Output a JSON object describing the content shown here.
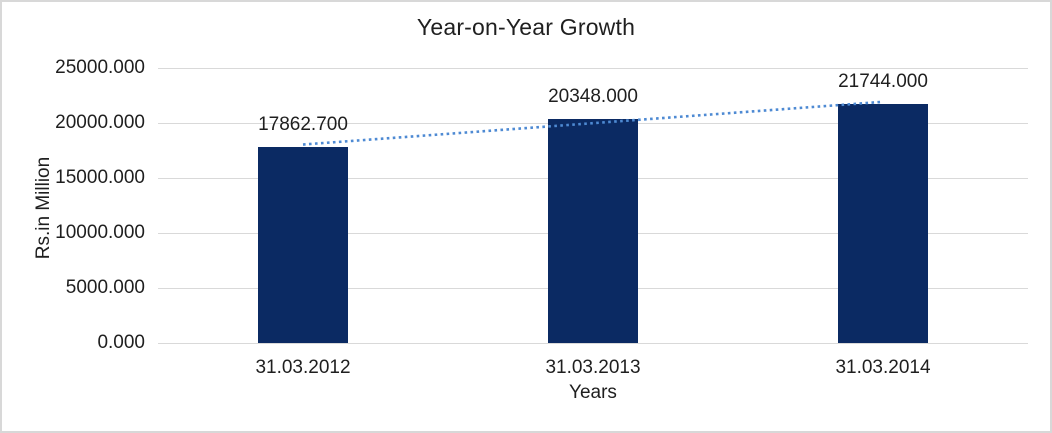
{
  "chart_data": {
    "type": "bar",
    "title": "Year-on-Year Growth",
    "xlabel": "Years",
    "ylabel": "Rs.in Million",
    "categories": [
      "31.03.2012",
      "31.03.2013",
      "31.03.2014"
    ],
    "values": [
      17862.7,
      20348.0,
      21744.0
    ],
    "data_labels": [
      "17862.700",
      "20348.000",
      "21744.000"
    ],
    "ylim": [
      0,
      25000
    ],
    "y_ticks": [
      0,
      5000,
      10000,
      15000,
      20000,
      25000
    ],
    "y_tick_labels": [
      "0.000",
      "5000.000",
      "10000.000",
      "15000.000",
      "20000.000",
      "25000.000"
    ],
    "grid": true,
    "legend": false,
    "trendline": {
      "style": "dotted",
      "color": "#4E8AD3",
      "values": [
        18044,
        19985,
        21926
      ]
    },
    "colors": {
      "bar": "#0B2A63",
      "text": "#1F1F1F",
      "gridline": "#D9D9D9",
      "frame_border": "#D8D8D8",
      "background": "#FFFFFF"
    }
  }
}
